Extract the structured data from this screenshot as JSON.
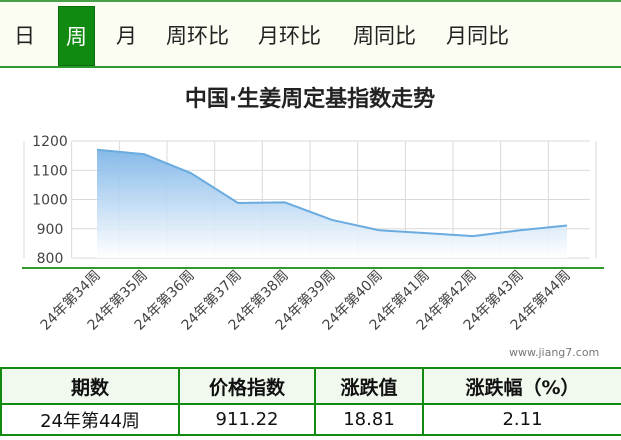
{
  "tabs": [
    {
      "label": "日"
    },
    {
      "label": "周"
    },
    {
      "label": "月"
    },
    {
      "label": "周环比"
    },
    {
      "label": "月环比"
    },
    {
      "label": "周同比"
    },
    {
      "label": "月同比"
    }
  ],
  "active_tab": "周",
  "chart_data": {
    "type": "area",
    "title": "中国·生姜周定基指数走势",
    "xlabel": "",
    "ylabel": "",
    "categories": [
      "24年第34周",
      "24年第35周",
      "24年第36周",
      "24年第37周",
      "24年第38周",
      "24年第39周",
      "24年第40周",
      "24年第41周",
      "24年第42周",
      "24年第43周",
      "24年第44周"
    ],
    "series": [
      {
        "values": [
          1170,
          1155,
          1090,
          988,
          990,
          930,
          895,
          885,
          875,
          895,
          911.22
        ]
      }
    ],
    "y_ticks": [
      800,
      900,
      1000,
      1100,
      1200
    ],
    "ylim": [
      800,
      1200
    ],
    "grid": true,
    "colors": {
      "line": "#6aabe0",
      "fill_top": "#7fb6e8",
      "fill_bottom": "#ffffff",
      "grid": "#d9d9d9",
      "axis": "#2e9b2e"
    }
  },
  "watermark": "www.jiang7.com",
  "summary_table": {
    "headers": [
      "期数",
      "价格指数",
      "涨跌值",
      "涨跌幅（%）"
    ],
    "row": [
      "24年第44周",
      "911.22",
      "18.81",
      "2.11"
    ]
  }
}
